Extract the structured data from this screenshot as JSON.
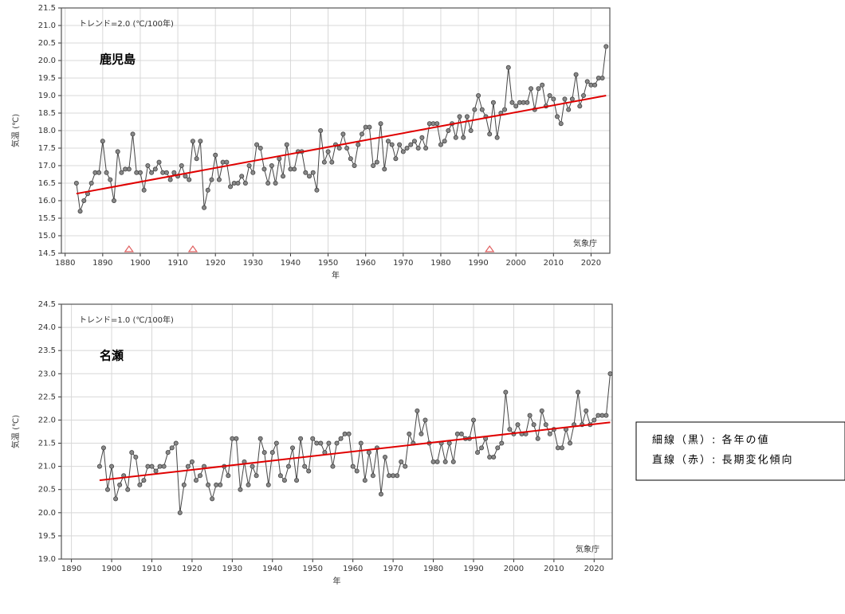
{
  "chart_data": [
    {
      "type": "line",
      "title": "鹿児島",
      "annotation": "トレンド=2.0 (℃/100年)",
      "credit": "気象庁",
      "ylabel": "気温 (℃)",
      "xlabel": "年",
      "xlim": [
        1879,
        2025
      ],
      "ylim": [
        14.5,
        21.5
      ],
      "xticks": [
        1880,
        1890,
        1900,
        1910,
        1920,
        1930,
        1940,
        1950,
        1960,
        1970,
        1980,
        1990,
        2000,
        2010,
        2020
      ],
      "yticks": [
        {
          "value": 14.5,
          "label": "14.5"
        },
        {
          "value": 15,
          "label": "15.0"
        },
        {
          "value": 15.5,
          "label": "15.5"
        },
        {
          "value": 16,
          "label": "16.0"
        },
        {
          "value": 16.5,
          "label": "16.5"
        },
        {
          "value": 17,
          "label": "17.0"
        },
        {
          "value": 17.5,
          "label": "17.5"
        },
        {
          "value": 18,
          "label": "18.0"
        },
        {
          "value": 18.5,
          "label": "18.5"
        },
        {
          "value": 19,
          "label": "19.0"
        },
        {
          "value": 19.5,
          "label": "19.5"
        },
        {
          "value": 20,
          "label": "20.0"
        },
        {
          "value": 20.5,
          "label": "20.5"
        },
        {
          "value": 21,
          "label": "21.0"
        },
        {
          "value": 21.5,
          "label": "21.5"
        }
      ],
      "grid": true,
      "markers": [
        1897,
        1914,
        1993
      ],
      "marker_color": "#e06060",
      "series": [
        {
          "name": "細線（黒）: 各年の値",
          "color": "#444444",
          "x": [
            1883,
            1884,
            1885,
            1886,
            1887,
            1888,
            1889,
            1890,
            1891,
            1892,
            1893,
            1894,
            1895,
            1896,
            1897,
            1898,
            1899,
            1900,
            1901,
            1902,
            1903,
            1904,
            1905,
            1906,
            1907,
            1908,
            1909,
            1910,
            1911,
            1912,
            1913,
            1914,
            1915,
            1916,
            1917,
            1918,
            1919,
            1920,
            1921,
            1922,
            1923,
            1924,
            1925,
            1926,
            1927,
            1928,
            1929,
            1930,
            1931,
            1932,
            1933,
            1934,
            1935,
            1936,
            1937,
            1938,
            1939,
            1940,
            1941,
            1942,
            1943,
            1944,
            1945,
            1946,
            1947,
            1948,
            1949,
            1950,
            1951,
            1952,
            1953,
            1954,
            1955,
            1956,
            1957,
            1958,
            1959,
            1960,
            1961,
            1962,
            1963,
            1964,
            1965,
            1966,
            1967,
            1968,
            1969,
            1970,
            1971,
            1972,
            1973,
            1974,
            1975,
            1976,
            1977,
            1978,
            1979,
            1980,
            1981,
            1982,
            1983,
            1984,
            1985,
            1986,
            1987,
            1988,
            1989,
            1990,
            1991,
            1992,
            1993,
            1994,
            1995,
            1996,
            1997,
            1998,
            1999,
            2000,
            2001,
            2002,
            2003,
            2004,
            2005,
            2006,
            2007,
            2008,
            2009,
            2010,
            2011,
            2012,
            2013,
            2014,
            2015,
            2016,
            2017,
            2018,
            2019,
            2020,
            2021,
            2022,
            2023,
            2024
          ],
          "values": [
            16.5,
            15.7,
            16.0,
            16.2,
            16.5,
            16.8,
            16.8,
            17.7,
            16.8,
            16.6,
            16.0,
            17.4,
            16.8,
            16.9,
            16.9,
            17.9,
            16.8,
            16.8,
            16.3,
            17.0,
            16.8,
            16.9,
            17.1,
            16.8,
            16.8,
            16.6,
            16.8,
            16.7,
            17.0,
            16.7,
            16.6,
            17.7,
            17.2,
            17.7,
            15.8,
            16.3,
            16.6,
            17.3,
            16.6,
            17.1,
            17.1,
            16.4,
            16.5,
            16.5,
            16.7,
            16.5,
            17.0,
            16.8,
            17.6,
            17.5,
            16.9,
            16.5,
            17.0,
            16.5,
            17.2,
            16.7,
            17.6,
            16.9,
            16.9,
            17.4,
            17.4,
            16.8,
            16.7,
            16.8,
            16.3,
            18.0,
            17.1,
            17.4,
            17.1,
            17.6,
            17.5,
            17.9,
            17.5,
            17.2,
            17.0,
            17.6,
            17.9,
            18.1,
            18.1,
            17.0,
            17.1,
            18.2,
            16.9,
            17.7,
            17.6,
            17.2,
            17.6,
            17.4,
            17.5,
            17.6,
            17.7,
            17.5,
            17.8,
            17.5,
            18.2,
            18.2,
            18.2,
            17.6,
            17.7,
            18.0,
            18.2,
            17.8,
            18.4,
            17.8,
            18.4,
            18.0,
            18.6,
            19.0,
            18.6,
            18.4,
            17.9,
            18.8,
            17.8,
            18.5,
            18.6,
            19.8,
            18.8,
            18.7,
            18.8,
            18.8,
            18.8,
            19.2,
            18.6,
            19.2,
            19.3,
            18.7,
            19.0,
            18.9,
            18.4,
            18.2,
            18.9,
            18.6,
            18.9,
            19.6,
            18.7,
            19.0,
            19.4,
            19.3,
            19.3,
            19.5,
            19.5,
            20.4
          ]
        },
        {
          "name": "直線（赤）: 長期変化傾向",
          "color": "#e00000",
          "x": [
            1883,
            2024
          ],
          "values": [
            16.2,
            19.0
          ]
        }
      ]
    },
    {
      "type": "line",
      "title": "名瀬",
      "annotation": "トレンド=1.0 (℃/100年)",
      "credit": "気象庁",
      "ylabel": "気温 (℃)",
      "xlabel": "年",
      "xlim": [
        1887.5,
        2024.5
      ],
      "ylim": [
        19,
        24.5
      ],
      "xticks": [
        1890,
        1900,
        1910,
        1920,
        1930,
        1940,
        1950,
        1960,
        1970,
        1980,
        1990,
        2000,
        2010,
        2020
      ],
      "yticks": [
        {
          "value": 19,
          "label": "19.0"
        },
        {
          "value": 19.5,
          "label": "19.5"
        },
        {
          "value": 20,
          "label": "20.0"
        },
        {
          "value": 20.5,
          "label": "20.5"
        },
        {
          "value": 21,
          "label": "21.0"
        },
        {
          "value": 21.5,
          "label": "21.5"
        },
        {
          "value": 22,
          "label": "22.0"
        },
        {
          "value": 22.5,
          "label": "22.5"
        },
        {
          "value": 23,
          "label": "23.0"
        },
        {
          "value": 23.5,
          "label": "23.5"
        },
        {
          "value": 24,
          "label": "24.0"
        },
        {
          "value": 24.5,
          "label": "24.5"
        }
      ],
      "grid": true,
      "series": [
        {
          "name": "細線（黒）: 各年の値",
          "color": "#444444",
          "x": [
            1897,
            1898,
            1899,
            1900,
            1901,
            1902,
            1903,
            1904,
            1905,
            1906,
            1907,
            1908,
            1909,
            1910,
            1911,
            1912,
            1913,
            1914,
            1915,
            1916,
            1917,
            1918,
            1919,
            1920,
            1921,
            1922,
            1923,
            1924,
            1925,
            1926,
            1927,
            1928,
            1929,
            1930,
            1931,
            1932,
            1933,
            1934,
            1935,
            1936,
            1937,
            1938,
            1939,
            1940,
            1941,
            1942,
            1943,
            1944,
            1945,
            1946,
            1947,
            1948,
            1949,
            1950,
            1951,
            1952,
            1953,
            1954,
            1955,
            1956,
            1957,
            1958,
            1959,
            1960,
            1961,
            1962,
            1963,
            1964,
            1965,
            1966,
            1967,
            1968,
            1969,
            1970,
            1971,
            1972,
            1973,
            1974,
            1975,
            1976,
            1977,
            1978,
            1979,
            1980,
            1981,
            1982,
            1983,
            1984,
            1985,
            1986,
            1987,
            1988,
            1989,
            1990,
            1991,
            1992,
            1993,
            1994,
            1995,
            1996,
            1997,
            1998,
            1999,
            2000,
            2001,
            2002,
            2003,
            2004,
            2005,
            2006,
            2007,
            2008,
            2009,
            2010,
            2011,
            2012,
            2013,
            2014,
            2015,
            2016,
            2017,
            2018,
            2019,
            2020,
            2021,
            2022,
            2023,
            2024
          ],
          "values": [
            21.0,
            21.4,
            20.5,
            21.0,
            20.3,
            20.6,
            20.8,
            20.5,
            21.3,
            21.2,
            20.6,
            20.7,
            21.0,
            21.0,
            20.9,
            21.0,
            21.0,
            21.3,
            21.4,
            21.5,
            20.0,
            20.6,
            21.0,
            21.1,
            20.7,
            20.8,
            21.0,
            20.6,
            20.3,
            20.6,
            20.6,
            21.0,
            20.8,
            21.6,
            21.6,
            20.5,
            21.1,
            20.6,
            21.0,
            20.8,
            21.6,
            21.3,
            20.6,
            21.3,
            21.5,
            20.8,
            20.7,
            21.0,
            21.4,
            20.7,
            21.6,
            21.0,
            20.9,
            21.6,
            21.5,
            21.5,
            21.3,
            21.5,
            21.0,
            21.5,
            21.6,
            21.7,
            21.7,
            21.0,
            20.9,
            21.5,
            20.7,
            21.3,
            20.8,
            21.4,
            20.4,
            21.2,
            20.8,
            20.8,
            20.8,
            21.1,
            21.0,
            21.7,
            21.5,
            22.2,
            21.7,
            22.0,
            21.5,
            21.1,
            21.1,
            21.5,
            21.1,
            21.5,
            21.1,
            21.7,
            21.7,
            21.6,
            21.6,
            22.0,
            21.3,
            21.4,
            21.6,
            21.2,
            21.2,
            21.4,
            21.5,
            22.6,
            21.8,
            21.7,
            21.9,
            21.7,
            21.7,
            22.1,
            21.9,
            21.6,
            22.2,
            21.9,
            21.7,
            21.8,
            21.4,
            21.4,
            21.8,
            21.5,
            21.9,
            22.6,
            21.9,
            22.2,
            21.9,
            22.0,
            22.1,
            22.1,
            22.1,
            23.0
          ]
        },
        {
          "name": "直線（赤）: 長期変化傾向",
          "color": "#e00000",
          "x": [
            1897,
            2024
          ],
          "values": [
            20.7,
            21.95
          ]
        }
      ]
    }
  ]
}
